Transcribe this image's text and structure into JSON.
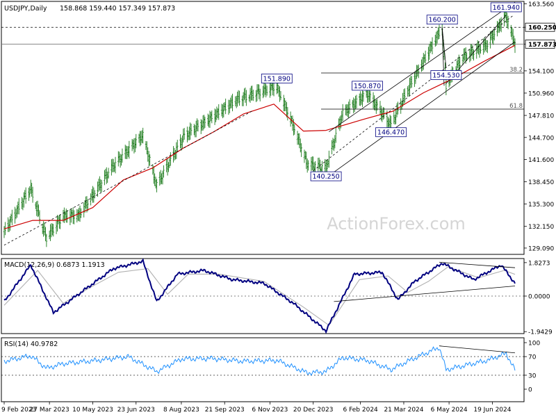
{
  "header": {
    "symbol": "USDJPY,Daily",
    "ohlc": "158.868 159.440 157.349 157.873"
  },
  "watermark": "ActionForex.com",
  "colors": {
    "price_bar": "#1a7a1a",
    "ma": "#cc0000",
    "macd": "#000080",
    "signal": "#b0b0b0",
    "rsi": "#1e90ff",
    "trend": "#000000",
    "label_border": "#000080",
    "label_text": "#000080"
  },
  "chart_data": [
    {
      "type": "ohlc",
      "name": "price",
      "x_ticks": [
        "9 Feb 2023",
        "27 Mar 2023",
        "10 May 2023",
        "23 Jun 2023",
        "8 Aug 2023",
        "21 Sep 2023",
        "6 Nov 2023",
        "20 Dec 2023",
        "6 Feb 2024",
        "21 Mar 2024",
        "6 May 2024",
        "19 Jun 2024"
      ],
      "y_ticks": [
        163.56,
        160.25,
        157.873,
        154.1,
        150.96,
        147.81,
        144.7,
        141.6,
        138.45,
        135.3,
        132.15,
        129.09
      ],
      "ylim": [
        128.2,
        163.9
      ],
      "current_price": 157.873,
      "level_line": 160.25,
      "swing_labels": [
        {
          "text": "151.890",
          "value": 151.89,
          "date": "2023-11-13"
        },
        {
          "text": "140.250",
          "value": 140.25,
          "date": "2024-01-02"
        },
        {
          "text": "150.870",
          "value": 150.87,
          "date": "2024-02-13"
        },
        {
          "text": "146.470",
          "value": 146.47,
          "date": "2024-03-08"
        },
        {
          "text": "160.200",
          "value": 160.2,
          "date": "2024-04-29"
        },
        {
          "text": "154.530",
          "value": 154.53,
          "date": "2024-05-03"
        },
        {
          "text": "161.940",
          "value": 161.94,
          "date": "2024-07-03"
        }
      ],
      "fib_levels": [
        {
          "label": "38.2",
          "value": 153.8
        },
        {
          "label": "61.8",
          "value": 148.7
        }
      ],
      "series": [
        {
          "name": "price",
          "points": [
            [
              "2023-02-09",
              131.4
            ],
            [
              "2023-03-08",
              137.5
            ],
            [
              "2023-03-24",
              130.5
            ],
            [
              "2023-04-10",
              133.6
            ],
            [
              "2023-04-26",
              133.7
            ],
            [
              "2023-05-31",
              140.7
            ],
            [
              "2023-06-30",
              145.0
            ],
            [
              "2023-07-14",
              137.9
            ],
            [
              "2023-08-11",
              144.9
            ],
            [
              "2023-09-08",
              147.5
            ],
            [
              "2023-10-03",
              150.0
            ],
            [
              "2023-11-13",
              151.9
            ],
            [
              "2023-11-28",
              147.0
            ],
            [
              "2023-12-14",
              141.0
            ],
            [
              "2024-01-02",
              140.3
            ],
            [
              "2024-01-19",
              148.1
            ],
            [
              "2024-02-13",
              150.9
            ],
            [
              "2024-03-08",
              146.5
            ],
            [
              "2024-03-27",
              151.9
            ],
            [
              "2024-04-29",
              160.2
            ],
            [
              "2024-05-03",
              152.0
            ],
            [
              "2024-05-20",
              156.0
            ],
            [
              "2024-06-14",
              157.8
            ],
            [
              "2024-07-03",
              161.9
            ],
            [
              "2024-07-12",
              157.9
            ]
          ]
        },
        {
          "name": "moving average",
          "points": [
            [
              "2023-02-09",
              131.8
            ],
            [
              "2023-03-10",
              133.0
            ],
            [
              "2023-04-10",
              133.0
            ],
            [
              "2023-05-10",
              134.8
            ],
            [
              "2023-06-10",
              138.7
            ],
            [
              "2023-07-10",
              140.4
            ],
            [
              "2023-08-10",
              143.2
            ],
            [
              "2023-09-10",
              145.5
            ],
            [
              "2023-10-10",
              148.0
            ],
            [
              "2023-11-10",
              149.4
            ],
            [
              "2023-12-10",
              145.6
            ],
            [
              "2024-01-02",
              145.7
            ],
            [
              "2024-02-10",
              147.3
            ],
            [
              "2024-03-10",
              148.4
            ],
            [
              "2024-04-10",
              151.0
            ],
            [
              "2024-05-10",
              153.0
            ],
            [
              "2024-06-10",
              155.4
            ],
            [
              "2024-07-12",
              157.7
            ]
          ]
        }
      ]
    },
    {
      "type": "line",
      "name": "MACD",
      "label": "MACD(12,26,9) 0.6873 1.1913",
      "y_ticks": [
        1.8273,
        0.0,
        -1.9429
      ],
      "ylim": [
        -2.05,
        2.05
      ],
      "series": [
        {
          "name": "MACD",
          "points": [
            [
              "2023-02-09",
              -0.3
            ],
            [
              "2023-03-08",
              1.7
            ],
            [
              "2023-03-31",
              -0.9
            ],
            [
              "2023-04-28",
              0.2
            ],
            [
              "2023-05-31",
              1.5
            ],
            [
              "2023-06-30",
              1.9
            ],
            [
              "2023-07-14",
              -0.3
            ],
            [
              "2023-08-04",
              1.2
            ],
            [
              "2023-08-31",
              1.4
            ],
            [
              "2023-09-29",
              0.9
            ],
            [
              "2023-10-31",
              0.7
            ],
            [
              "2023-11-30",
              -0.4
            ],
            [
              "2024-01-02",
              -1.9
            ],
            [
              "2024-01-31",
              1.2
            ],
            [
              "2024-02-28",
              1.3
            ],
            [
              "2024-03-15",
              -0.2
            ],
            [
              "2024-04-01",
              0.8
            ],
            [
              "2024-04-29",
              1.8
            ],
            [
              "2024-05-31",
              0.9
            ],
            [
              "2024-06-28",
              1.7
            ],
            [
              "2024-07-12",
              0.7
            ]
          ]
        },
        {
          "name": "signal",
          "points": [
            [
              "2023-02-09",
              -0.5
            ],
            [
              "2023-03-15",
              1.4
            ],
            [
              "2023-04-10",
              -0.4
            ],
            [
              "2023-05-05",
              0.4
            ],
            [
              "2023-06-05",
              1.3
            ],
            [
              "2023-07-05",
              1.5
            ],
            [
              "2023-07-25",
              0.1
            ],
            [
              "2023-08-15",
              1.2
            ],
            [
              "2023-09-15",
              1.2
            ],
            [
              "2023-10-31",
              0.8
            ],
            [
              "2023-12-10",
              -0.6
            ],
            [
              "2024-01-05",
              -1.6
            ],
            [
              "2024-02-05",
              0.9
            ],
            [
              "2024-03-05",
              1.1
            ],
            [
              "2024-03-25",
              0.2
            ],
            [
              "2024-04-15",
              0.8
            ],
            [
              "2024-05-05",
              1.6
            ],
            [
              "2024-06-05",
              1.0
            ],
            [
              "2024-07-01",
              1.4
            ],
            [
              "2024-07-12",
              1.19
            ]
          ]
        }
      ],
      "trendlines": [
        {
          "from": [
            "2024-04-26",
            1.85
          ],
          "to": [
            "2024-07-12",
            1.55
          ]
        },
        {
          "from": [
            "2024-01-10",
            -0.3
          ],
          "to": [
            "2024-07-12",
            0.55
          ]
        }
      ]
    },
    {
      "type": "line",
      "name": "RSI",
      "label": "RSI(14) 40.9782",
      "y_ticks": [
        100,
        70,
        30,
        0
      ],
      "ylim": [
        0,
        100
      ],
      "series": [
        {
          "name": "RSI",
          "points": [
            [
              "2023-02-09",
              60
            ],
            [
              "2023-03-08",
              72
            ],
            [
              "2023-03-24",
              45
            ],
            [
              "2023-04-10",
              55
            ],
            [
              "2023-05-15",
              62
            ],
            [
              "2023-06-15",
              70
            ],
            [
              "2023-07-14",
              38
            ],
            [
              "2023-08-08",
              65
            ],
            [
              "2023-09-08",
              66
            ],
            [
              "2023-10-10",
              60
            ],
            [
              "2023-11-13",
              62
            ],
            [
              "2023-12-14",
              35
            ],
            [
              "2024-01-02",
              38
            ],
            [
              "2024-01-19",
              68
            ],
            [
              "2024-02-13",
              62
            ],
            [
              "2024-03-08",
              42
            ],
            [
              "2024-03-27",
              62
            ],
            [
              "2024-04-26",
              90
            ],
            [
              "2024-05-03",
              42
            ],
            [
              "2024-06-14",
              62
            ],
            [
              "2024-07-03",
              77
            ],
            [
              "2024-07-12",
              41
            ]
          ]
        }
      ],
      "trendlines": [
        {
          "from": [
            "2024-04-26",
            93
          ],
          "to": [
            "2024-07-12",
            78
          ]
        }
      ]
    }
  ]
}
